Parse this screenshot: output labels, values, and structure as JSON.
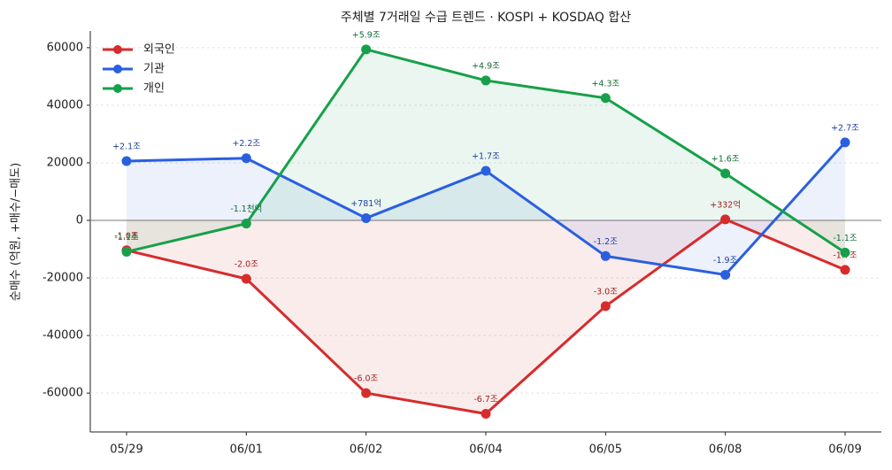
{
  "chart_data": {
    "type": "line",
    "title": "주체별 7거래일 수급 트렌드 · KOSPI + KOSDAQ 합산",
    "y_label": "순매수 (억원, +매수/−매도)",
    "categories": [
      "05/29",
      "06/01",
      "06/02",
      "06/04",
      "06/05",
      "06/08",
      "06/09"
    ],
    "series": [
      {
        "name": "외국인",
        "color": "#d62c2c",
        "label_color": "#9b1c1c",
        "values": [
          -10400,
          -20300,
          -60000,
          -67200,
          -29800,
          332,
          -17200
        ],
        "value_labels": [
          "-1.0조",
          "-2.0조",
          "-6.0조",
          "-6.7조",
          "-3.0조",
          "+332억",
          "-1.7조"
        ]
      },
      {
        "name": "기관",
        "color": "#2a5fe0",
        "label_color": "#1d3f9e",
        "values": [
          20600,
          21600,
          781,
          17200,
          -12400,
          -18900,
          27100
        ],
        "value_labels": [
          "+2.1조",
          "+2.2조",
          "+781억",
          "+1.7조",
          "-1.2조",
          "-1.9조",
          "+2.7조"
        ]
      },
      {
        "name": "개인",
        "color": "#17a04a",
        "label_color": "#126b34",
        "values": [
          -10900,
          -1100,
          59400,
          48600,
          42500,
          16300,
          -11200
        ],
        "value_labels": [
          "-1.1조",
          "-1.1천억",
          "+5.9조",
          "+4.9조",
          "+4.3조",
          "+1.6조",
          "-1.1조"
        ]
      }
    ],
    "ylim": [
      -73500,
      65800
    ],
    "yticks": [
      -60000,
      -40000,
      -20000,
      0,
      20000,
      40000,
      60000
    ],
    "grid": true,
    "legend": "upper left"
  }
}
